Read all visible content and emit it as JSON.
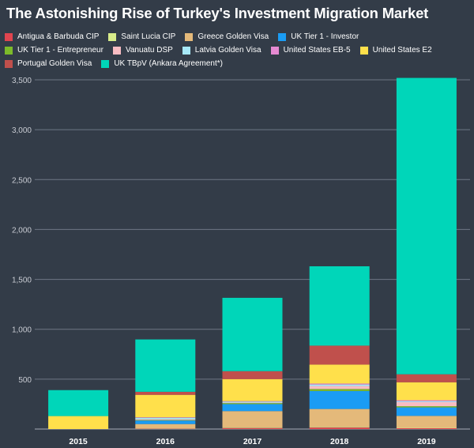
{
  "chart_data": {
    "type": "bar",
    "stacked": true,
    "title": "The Astonishing Rise of Turkey's Investment Migration Market",
    "xlabel": "",
    "ylabel": "",
    "categories": [
      "2015",
      "2016",
      "2017",
      "2018",
      "2019"
    ],
    "ylim": [
      0,
      3500
    ],
    "yticks": [
      0,
      500,
      1000,
      1500,
      2000,
      2500,
      3000,
      3500
    ],
    "ytick_labels": [
      "",
      "500",
      "1,000",
      "1,500",
      "2,000",
      "2,500",
      "3,000",
      "3,500"
    ],
    "grid": true,
    "legend_position": "top",
    "series": [
      {
        "name": "Antigua & Barbuda CIP",
        "color": "#e0454f",
        "values": [
          0,
          3,
          10,
          15,
          8
        ]
      },
      {
        "name": "Saint Lucia CIP",
        "color": "#d8ec8a",
        "values": [
          0,
          2,
          5,
          6,
          4
        ]
      },
      {
        "name": "Greece Golden Visa",
        "color": "#e4b97a",
        "values": [
          0,
          45,
          165,
          180,
          120
        ]
      },
      {
        "name": "UK Tier 1 - Investor",
        "color": "#1a9cf4",
        "values": [
          0,
          35,
          70,
          180,
          85
        ]
      },
      {
        "name": "UK Tier 1 - Entrepreneur",
        "color": "#7dbb2a",
        "values": [
          0,
          5,
          10,
          20,
          12
        ]
      },
      {
        "name": "Vanuatu DSP",
        "color": "#f8bcc2",
        "values": [
          0,
          8,
          5,
          30,
          40
        ]
      },
      {
        "name": "Latvia Golden Visa",
        "color": "#a6e8f8",
        "values": [
          0,
          15,
          10,
          15,
          10
        ]
      },
      {
        "name": "United States EB-5",
        "color": "#e68ad2",
        "values": [
          0,
          5,
          5,
          10,
          10
        ]
      },
      {
        "name": "United States E2",
        "color": "#ffe04b",
        "values": [
          130,
          225,
          220,
          190,
          180
        ]
      },
      {
        "name": "Portugal Golden Visa",
        "color": "#c0504c",
        "values": [
          0,
          30,
          80,
          190,
          80
        ]
      },
      {
        "name": "UK TBpV (Ankara Agreement*)",
        "color": "#00d6b9",
        "values": [
          260,
          525,
          735,
          795,
          2970
        ]
      }
    ]
  }
}
